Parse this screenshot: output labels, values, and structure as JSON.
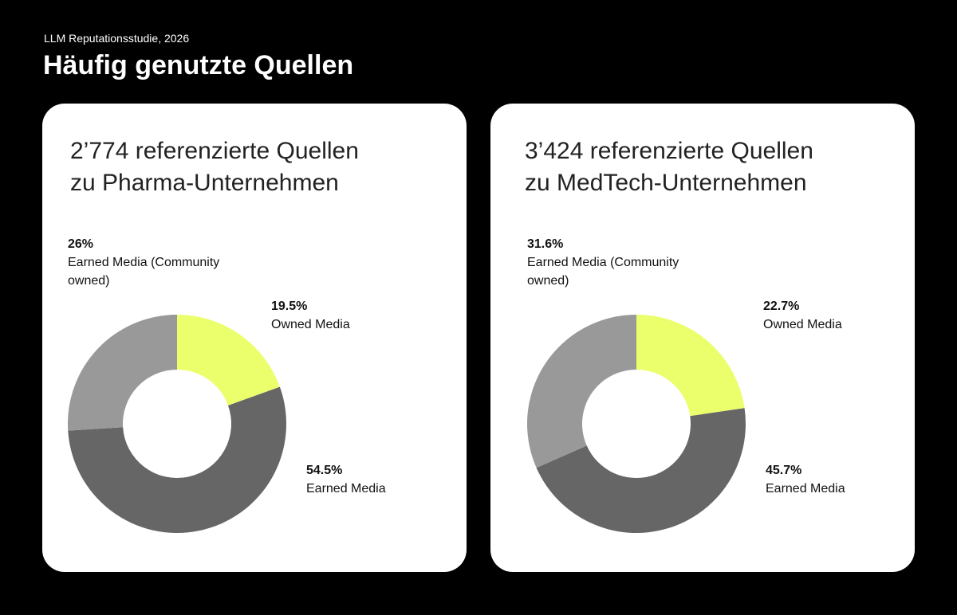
{
  "header": {
    "subtitle": "LLM Reputationsstudie, 2026",
    "title": "Häufig genutzte Quellen"
  },
  "chart_data": [
    {
      "type": "pie",
      "donut": true,
      "title": [
        "2’774 referenzierte Quellen",
        "zu Pharma-Unternehmen"
      ],
      "categories": [
        "Owned Media",
        "Earned Media",
        "Earned Media (Community owned)"
      ],
      "values": [
        19.5,
        54.5,
        26
      ],
      "value_labels": [
        "19.5%",
        "54.5%",
        "26%"
      ],
      "colors": [
        "#ebff6c",
        "#666666",
        "#999999"
      ]
    },
    {
      "type": "pie",
      "donut": true,
      "title": [
        "3’424 referenzierte Quellen",
        "zu MedTech-Unternehmen"
      ],
      "categories": [
        "Owned Media",
        "Earned Media",
        "Earned Media (Community owned)"
      ],
      "values": [
        22.7,
        45.7,
        31.6
      ],
      "value_labels": [
        "22.7%",
        "45.7%",
        "31.6%"
      ],
      "colors": [
        "#ebff6c",
        "#666666",
        "#999999"
      ]
    }
  ]
}
